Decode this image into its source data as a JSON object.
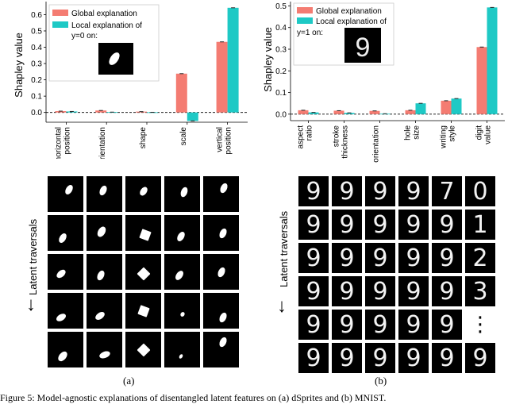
{
  "chart_data": [
    {
      "type": "bar",
      "panel": "a",
      "ylabel": "Shapley value",
      "ylim": [
        -0.06,
        0.68
      ],
      "yticks": [
        "0.0",
        "0.1",
        "0.2",
        "0.3",
        "0.4",
        "0.5",
        "0.6"
      ],
      "categories": [
        "horizontal position",
        "orientation",
        "shape",
        "scale",
        "vertical position"
      ],
      "series": [
        {
          "name": "Global explanation",
          "color": "#f47c72",
          "values": [
            0.008,
            0.012,
            0.005,
            0.238,
            0.433
          ]
        },
        {
          "name": "Local explanation of y=0 on:",
          "color": "#1ec9c5",
          "values": [
            0.006,
            0.002,
            0.001,
            -0.052,
            0.642
          ]
        }
      ],
      "legend_position": "top-left",
      "grid": false
    },
    {
      "type": "bar",
      "panel": "b",
      "ylabel": "Shapley value",
      "ylim": [
        -0.03,
        0.52
      ],
      "yticks": [
        "0.0",
        "0.1",
        "0.2",
        "0.3",
        "0.4",
        "0.5"
      ],
      "categories": [
        "aspect ratio",
        "stroke thickness",
        "orientation",
        "hole size",
        "writing style",
        "digit value"
      ],
      "series": [
        {
          "name": "Global explanation",
          "color": "#f47c72",
          "values": [
            0.018,
            0.016,
            0.015,
            0.018,
            0.062,
            0.31
          ]
        },
        {
          "name": "Local explanation of y=1 on:",
          "color": "#1ec9c5",
          "values": [
            0.008,
            0.006,
            0.002,
            0.05,
            0.072,
            0.493
          ]
        }
      ],
      "legend_position": "top-left",
      "grid": false
    }
  ],
  "legend_a": {
    "global": "Global explanation",
    "local_line1": "Local explanation of",
    "local_line2": "y=0 on:"
  },
  "legend_b": {
    "global": "Global explanation",
    "local_line1": "Local explanation of",
    "local_line2": "y=1 on:"
  },
  "xticks_a": [
    [
      "horizontal",
      "position"
    ],
    [
      "orientation"
    ],
    [
      "shape"
    ],
    [
      "scale"
    ],
    [
      "vertical",
      "position"
    ]
  ],
  "xticks_b": [
    [
      "aspect",
      "ratio"
    ],
    [
      "stroke",
      "thickness"
    ],
    [
      "orientation"
    ],
    [
      "hole",
      "size"
    ],
    [
      "writing",
      "style"
    ],
    [
      "digit",
      "value"
    ]
  ],
  "legend_icon_b": "9",
  "traversals": {
    "label": "Latent traversals",
    "arrow": "↓",
    "digits_rows": [
      [
        "9",
        "9",
        "9",
        "9",
        "7",
        "0"
      ],
      [
        "9",
        "9",
        "9",
        "9",
        "9",
        "1"
      ],
      [
        "9",
        "9",
        "9",
        "9",
        "9",
        "2"
      ],
      [
        "9",
        "9",
        "9",
        "9",
        "9",
        "3"
      ],
      [
        "9",
        "9",
        "9",
        "9",
        "9",
        "⋮"
      ],
      [
        "9",
        "9",
        "9",
        "9",
        "9",
        "9"
      ]
    ]
  },
  "panel_labels": {
    "a": "(a)",
    "b": "(b)"
  },
  "caption": "Figure 5: Model-agnostic explanations of disentangled latent features on (a) dSprites and (b) MNIST."
}
